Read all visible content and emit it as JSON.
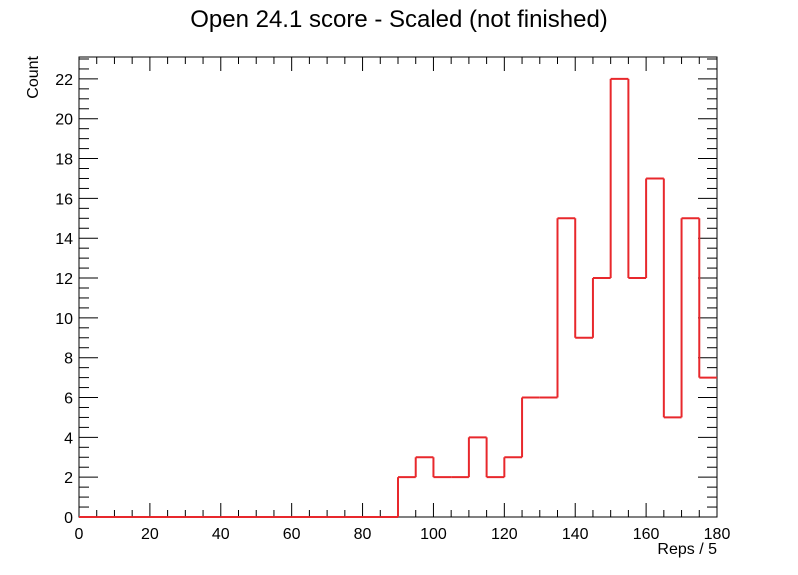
{
  "chart_data": {
    "type": "bar",
    "histogram": true,
    "title": "Open 24.1 score - Scaled (not finished)",
    "xlabel": "Reps / 5",
    "ylabel": "Count",
    "xlim": [
      0,
      180
    ],
    "ylim": [
      0,
      23.1
    ],
    "bin_width": 5,
    "bin_edges": [
      0,
      5,
      10,
      15,
      20,
      25,
      30,
      35,
      40,
      45,
      50,
      55,
      60,
      65,
      70,
      75,
      80,
      85,
      90,
      95,
      100,
      105,
      110,
      115,
      120,
      125,
      130,
      135,
      140,
      145,
      150,
      155,
      160,
      165,
      170,
      175,
      180
    ],
    "values": [
      0,
      0,
      0,
      0,
      0,
      0,
      0,
      0,
      0,
      0,
      0,
      0,
      0,
      0,
      0,
      0,
      0,
      0,
      2,
      3,
      2,
      2,
      4,
      2,
      3,
      6,
      6,
      15,
      9,
      12,
      22,
      12,
      17,
      5,
      15,
      7
    ],
    "x_ticks": [
      "0",
      "20",
      "40",
      "60",
      "80",
      "100",
      "120",
      "140",
      "160",
      "180"
    ],
    "y_ticks": [
      "0",
      "2",
      "4",
      "6",
      "8",
      "10",
      "12",
      "14",
      "16",
      "18",
      "20",
      "22"
    ],
    "line_color": "#e8282c",
    "frame_color": "#000000",
    "grid": false,
    "legend": "none"
  }
}
